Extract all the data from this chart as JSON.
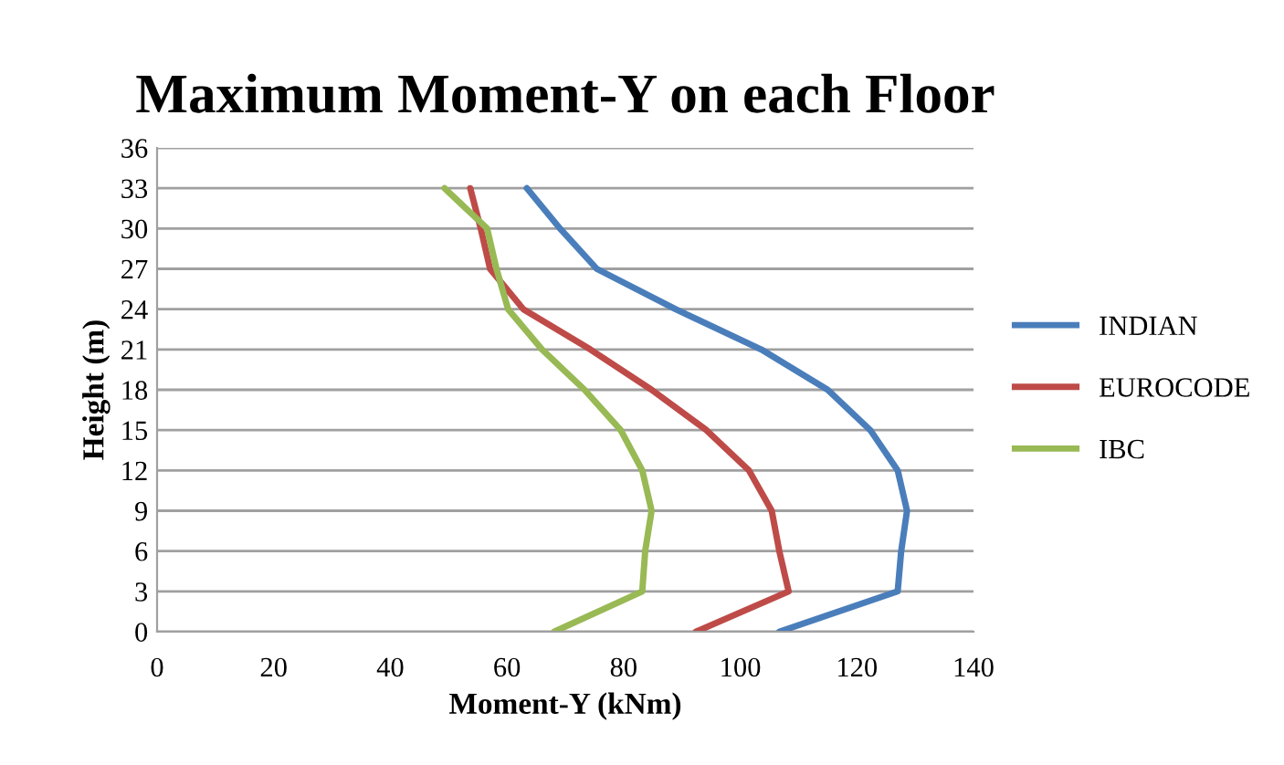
{
  "chart_data": {
    "type": "line",
    "title": "Maximum Moment-Y on each Floor",
    "xlabel": "Moment-Y (kNm)",
    "ylabel": "Height (m)",
    "series": [
      {
        "name": "INDIAN",
        "color": "#4a7ebb",
        "x": [
          106.7,
          127.0,
          127.6,
          128.6,
          127.0,
          122.3,
          115.0,
          103.6,
          88.9,
          75.4,
          69.1,
          63.4
        ],
        "values": [
          0,
          3,
          6,
          9,
          12,
          15,
          18,
          21,
          24,
          27,
          30,
          33
        ]
      },
      {
        "name": "EUROCODE",
        "color": "#be4b48",
        "x": [
          92.4,
          108.3,
          106.7,
          105.4,
          101.5,
          94.2,
          84.8,
          74.3,
          62.8,
          57.1,
          55.5,
          53.7
        ],
        "values": [
          0,
          3,
          6,
          9,
          12,
          15,
          18,
          21,
          24,
          27,
          30,
          33
        ]
      },
      {
        "name": "IBC",
        "color": "#98b954",
        "x": [
          68.1,
          83.2,
          83.7,
          84.8,
          83.2,
          79.5,
          73.3,
          66.0,
          60.2,
          58.2,
          56.6,
          49.3
        ],
        "values": [
          0,
          3,
          6,
          9,
          12,
          15,
          18,
          21,
          24,
          27,
          30,
          33
        ]
      }
    ],
    "xlim": [
      0,
      140
    ],
    "xticks": [
      0,
      20,
      40,
      60,
      80,
      100,
      120,
      140
    ],
    "ylim": [
      0,
      36
    ],
    "yticks": [
      0,
      3,
      6,
      9,
      12,
      15,
      18,
      21,
      24,
      27,
      30,
      33,
      36
    ],
    "grid": "y",
    "legend": "right",
    "marker": "none",
    "line_style": "solid"
  }
}
